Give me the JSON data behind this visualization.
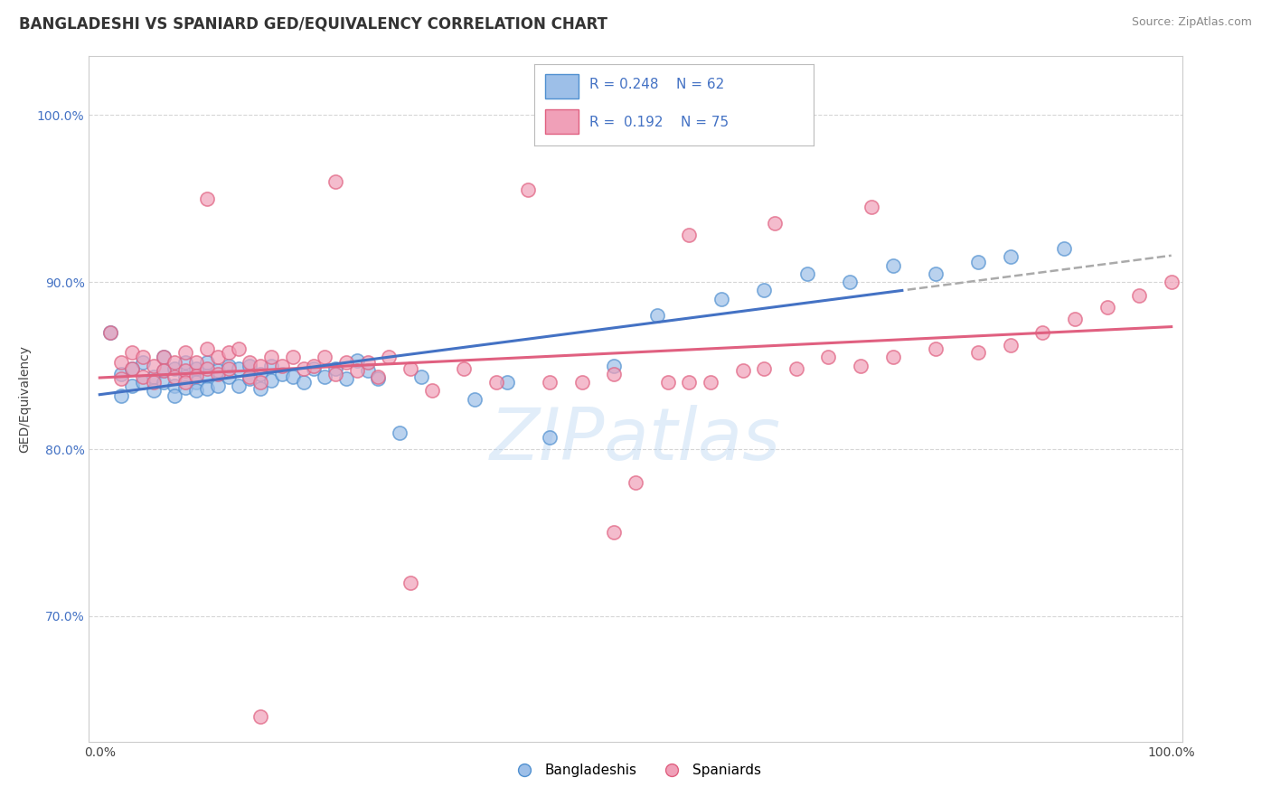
{
  "title": "BANGLADESHI VS SPANIARD GED/EQUIVALENCY CORRELATION CHART",
  "source_text": "Source: ZipAtlas.com",
  "ylabel": "GED/Equivalency",
  "xlim": [
    -0.01,
    1.01
  ],
  "ylim": [
    0.625,
    1.035
  ],
  "y_tick_values": [
    0.7,
    0.8,
    0.9,
    1.0
  ],
  "blue_label": "Bangladeshis",
  "pink_label": "Spaniards",
  "blue_R": "0.248",
  "blue_N": "62",
  "pink_R": "0.192",
  "pink_N": "75",
  "blue_color": "#9dbfe8",
  "pink_color": "#f0a0b8",
  "blue_line_color": "#4472c4",
  "pink_line_color": "#e06080",
  "blue_edge_color": "#5090d0",
  "pink_edge_color": "#e06080",
  "title_fontsize": 12,
  "blue_scatter_x": [
    0.01,
    0.02,
    0.02,
    0.03,
    0.03,
    0.04,
    0.04,
    0.05,
    0.05,
    0.06,
    0.06,
    0.06,
    0.07,
    0.07,
    0.07,
    0.08,
    0.08,
    0.08,
    0.09,
    0.09,
    0.09,
    0.1,
    0.1,
    0.1,
    0.11,
    0.11,
    0.12,
    0.12,
    0.13,
    0.13,
    0.14,
    0.14,
    0.15,
    0.15,
    0.16,
    0.16,
    0.17,
    0.18,
    0.19,
    0.2,
    0.21,
    0.22,
    0.23,
    0.24,
    0.25,
    0.26,
    0.28,
    0.3,
    0.35,
    0.38,
    0.42,
    0.48,
    0.52,
    0.58,
    0.62,
    0.66,
    0.7,
    0.74,
    0.78,
    0.82,
    0.85,
    0.9
  ],
  "blue_scatter_y": [
    0.87,
    0.845,
    0.832,
    0.848,
    0.838,
    0.84,
    0.852,
    0.843,
    0.835,
    0.855,
    0.847,
    0.84,
    0.848,
    0.838,
    0.832,
    0.852,
    0.843,
    0.837,
    0.848,
    0.84,
    0.835,
    0.852,
    0.844,
    0.836,
    0.847,
    0.838,
    0.85,
    0.843,
    0.848,
    0.838,
    0.842,
    0.85,
    0.845,
    0.836,
    0.85,
    0.841,
    0.845,
    0.843,
    0.84,
    0.848,
    0.843,
    0.848,
    0.842,
    0.853,
    0.847,
    0.842,
    0.81,
    0.843,
    0.83,
    0.84,
    0.807,
    0.85,
    0.88,
    0.89,
    0.895,
    0.905,
    0.9,
    0.91,
    0.905,
    0.912,
    0.915,
    0.92
  ],
  "pink_scatter_x": [
    0.01,
    0.02,
    0.02,
    0.03,
    0.03,
    0.04,
    0.04,
    0.05,
    0.05,
    0.06,
    0.06,
    0.07,
    0.07,
    0.08,
    0.08,
    0.08,
    0.09,
    0.09,
    0.1,
    0.1,
    0.11,
    0.11,
    0.12,
    0.12,
    0.13,
    0.14,
    0.14,
    0.15,
    0.15,
    0.16,
    0.17,
    0.18,
    0.19,
    0.2,
    0.21,
    0.22,
    0.23,
    0.24,
    0.25,
    0.26,
    0.27,
    0.29,
    0.31,
    0.34,
    0.37,
    0.42,
    0.45,
    0.48,
    0.5,
    0.53,
    0.55,
    0.57,
    0.6,
    0.62,
    0.65,
    0.68,
    0.71,
    0.74,
    0.78,
    0.82,
    0.85,
    0.88,
    0.91,
    0.94,
    0.97,
    1.0,
    0.1,
    0.22,
    0.4,
    0.55,
    0.63,
    0.72,
    0.48,
    0.29,
    0.15
  ],
  "pink_scatter_y": [
    0.87,
    0.852,
    0.842,
    0.858,
    0.848,
    0.855,
    0.843,
    0.85,
    0.84,
    0.855,
    0.847,
    0.852,
    0.843,
    0.858,
    0.847,
    0.84,
    0.852,
    0.844,
    0.86,
    0.848,
    0.855,
    0.845,
    0.858,
    0.848,
    0.86,
    0.852,
    0.843,
    0.85,
    0.84,
    0.855,
    0.85,
    0.855,
    0.848,
    0.85,
    0.855,
    0.845,
    0.852,
    0.847,
    0.852,
    0.843,
    0.855,
    0.848,
    0.835,
    0.848,
    0.84,
    0.84,
    0.84,
    0.845,
    0.78,
    0.84,
    0.84,
    0.84,
    0.847,
    0.848,
    0.848,
    0.855,
    0.85,
    0.855,
    0.86,
    0.858,
    0.862,
    0.87,
    0.878,
    0.885,
    0.892,
    0.9,
    0.95,
    0.96,
    0.955,
    0.928,
    0.935,
    0.945,
    0.75,
    0.72,
    0.64
  ]
}
